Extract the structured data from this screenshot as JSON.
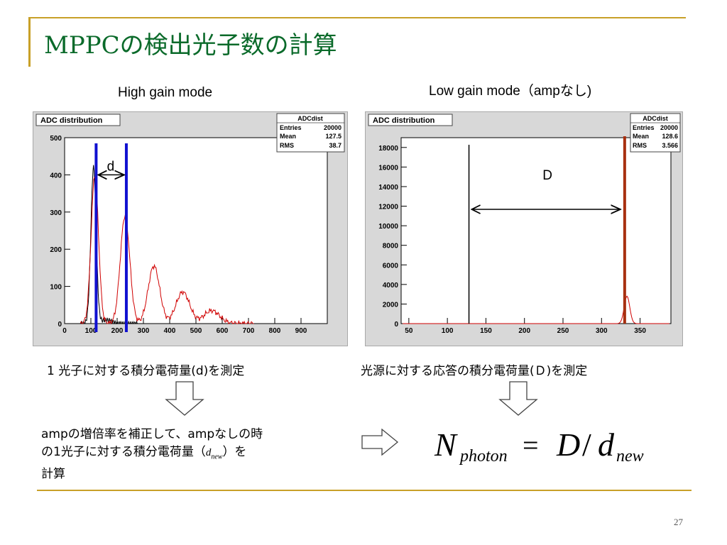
{
  "slide": {
    "title": "MPPCの検出光子数の計算",
    "page_number": "27"
  },
  "left": {
    "heading": "High gain mode",
    "histogram": {
      "title": "ADC distribution",
      "stats": {
        "name": "ADCdist",
        "entries_label": "Entries",
        "entries": "20000",
        "mean_label": "Mean",
        "mean": "127.5",
        "rms_label": "RMS",
        "rms": "38.7"
      },
      "xticks": [
        "0",
        "100",
        "200",
        "300",
        "400",
        "500",
        "600",
        "700",
        "800",
        "900"
      ],
      "yticks": [
        "0",
        "100",
        "200",
        "300",
        "400",
        "500"
      ],
      "xlim": [
        0,
        1000
      ],
      "ylim": [
        0,
        500
      ],
      "peaks": [
        {
          "x": 115,
          "y": 400
        },
        {
          "x": 230,
          "y": 290
        },
        {
          "x": 340,
          "y": 155
        },
        {
          "x": 450,
          "y": 85
        },
        {
          "x": 560,
          "y": 35
        }
      ],
      "marker_lines_x": [
        120,
        235
      ],
      "marker_color": "#1010d0",
      "arrow_label": "d"
    },
    "caption": "1 光子に対する積分電荷量(d)を測定"
  },
  "right": {
    "heading": "Low gain mode（ampなし)",
    "histogram": {
      "title": "ADC distribution",
      "stats": {
        "name": "ADCdist",
        "entries_label": "Entries",
        "entries": "20000",
        "mean_label": "Mean",
        "mean": "128.6",
        "rms_label": "RMS",
        "rms": "3.566"
      },
      "xticks": [
        "50",
        "100",
        "150",
        "200",
        "250",
        "300",
        "350"
      ],
      "yticks": [
        "0",
        "2000",
        "4000",
        "6000",
        "8000",
        "10000",
        "12000",
        "16000",
        "14000",
        "18000"
      ],
      "ytick_values": [
        0,
        2000,
        4000,
        6000,
        8000,
        10000,
        12000,
        16000,
        14000,
        18000
      ],
      "xlim": [
        40,
        390
      ],
      "ylim": [
        0,
        19000
      ],
      "pedestal_x": 128,
      "signal_peak": {
        "x": 333,
        "y": 2800
      },
      "marker_line_x": 330,
      "marker_color": "#a83010",
      "arrow_label": "D"
    },
    "caption": "光源に対する応答の積分電荷量(Ｄ)を測定"
  },
  "bottom": {
    "text_line1": "ampの増倍率を補正して、ampなしの時",
    "text_line2a": "の1光子に対する積分電荷量（",
    "text_var": "d",
    "text_sub": "new",
    "text_line2b": "）を",
    "text_line3": "計算",
    "formula": {
      "N": "N",
      "N_sub": "photon",
      "eq": "=",
      "D": "D",
      "slash": "/",
      "d": "d",
      "d_sub": "new"
    }
  },
  "colors": {
    "title": "#0a6a2a",
    "rule": "#c8a028",
    "hist_red": "#d00000"
  }
}
